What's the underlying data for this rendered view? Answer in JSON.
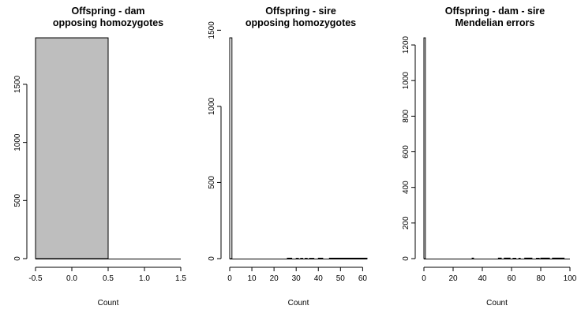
{
  "chart_data": [
    {
      "type": "bar",
      "title": [
        "Offspring - dam",
        "opposing homozygotes"
      ],
      "xlabel": "Count",
      "ylabel": "",
      "xlim": [
        -0.5,
        1.5
      ],
      "ylim": [
        0,
        1900
      ],
      "xticks": [
        -0.5,
        0,
        0.5,
        1,
        1.5
      ],
      "xtick_labels": [
        "-0.5",
        "0.0",
        "0.5",
        "1.0",
        "1.5"
      ],
      "yticks": [
        0,
        500,
        1000,
        1500
      ],
      "ytick_labels": [
        "0",
        "500",
        "1000",
        "1500"
      ],
      "bars": [
        {
          "x0": -0.5,
          "x1": 0.5,
          "value": 1900
        }
      ],
      "bar_fill": "#bebebe"
    },
    {
      "type": "bar",
      "title": [
        "Offspring - sire",
        "opposing homozygotes"
      ],
      "xlabel": "Count",
      "ylabel": "",
      "xlim": [
        0,
        62
      ],
      "ylim": [
        0,
        1450
      ],
      "xticks": [
        0,
        10,
        20,
        30,
        40,
        50,
        60
      ],
      "xtick_labels": [
        "0",
        "10",
        "20",
        "30",
        "40",
        "50",
        "60"
      ],
      "yticks": [
        0,
        500,
        1000,
        1500
      ],
      "ytick_labels": [
        "0",
        "500",
        "1000",
        "1500"
      ],
      "bars": [
        {
          "x0": 0,
          "x1": 1,
          "value": 1450
        },
        {
          "x0": 26,
          "x1": 28,
          "value": 3
        },
        {
          "x0": 30,
          "x1": 31,
          "value": 2
        },
        {
          "x0": 32,
          "x1": 33,
          "value": 2
        },
        {
          "x0": 34,
          "x1": 35,
          "value": 2
        },
        {
          "x0": 36,
          "x1": 38,
          "value": 2
        },
        {
          "x0": 40,
          "x1": 42,
          "value": 3
        },
        {
          "x0": 45,
          "x1": 62,
          "value": 3
        }
      ],
      "bar_fill": "#ffffff"
    },
    {
      "type": "bar",
      "title": [
        "Offspring - dam - sire",
        "Mendelian errors"
      ],
      "xlabel": "Count",
      "ylabel": "",
      "xlim": [
        0,
        100
      ],
      "ylim": [
        0,
        1240
      ],
      "xticks": [
        0,
        20,
        40,
        60,
        80,
        100
      ],
      "xtick_labels": [
        "0",
        "20",
        "40",
        "60",
        "80",
        "100"
      ],
      "yticks": [
        0,
        200,
        400,
        600,
        800,
        1000,
        1200
      ],
      "ytick_labels": [
        "0",
        "200",
        "400",
        "600",
        "800",
        "1000",
        "1200"
      ],
      "bars": [
        {
          "x0": 0,
          "x1": 1,
          "value": 1240
        },
        {
          "x0": 33,
          "x1": 34,
          "value": 3
        },
        {
          "x0": 51,
          "x1": 53,
          "value": 3
        },
        {
          "x0": 55,
          "x1": 59,
          "value": 3
        },
        {
          "x0": 61,
          "x1": 63,
          "value": 2
        },
        {
          "x0": 65,
          "x1": 66,
          "value": 2
        },
        {
          "x0": 69,
          "x1": 74,
          "value": 3
        },
        {
          "x0": 77,
          "x1": 79,
          "value": 2
        },
        {
          "x0": 80,
          "x1": 86,
          "value": 3
        },
        {
          "x0": 88,
          "x1": 96,
          "value": 3
        }
      ],
      "bar_fill": "#ffffff"
    }
  ]
}
